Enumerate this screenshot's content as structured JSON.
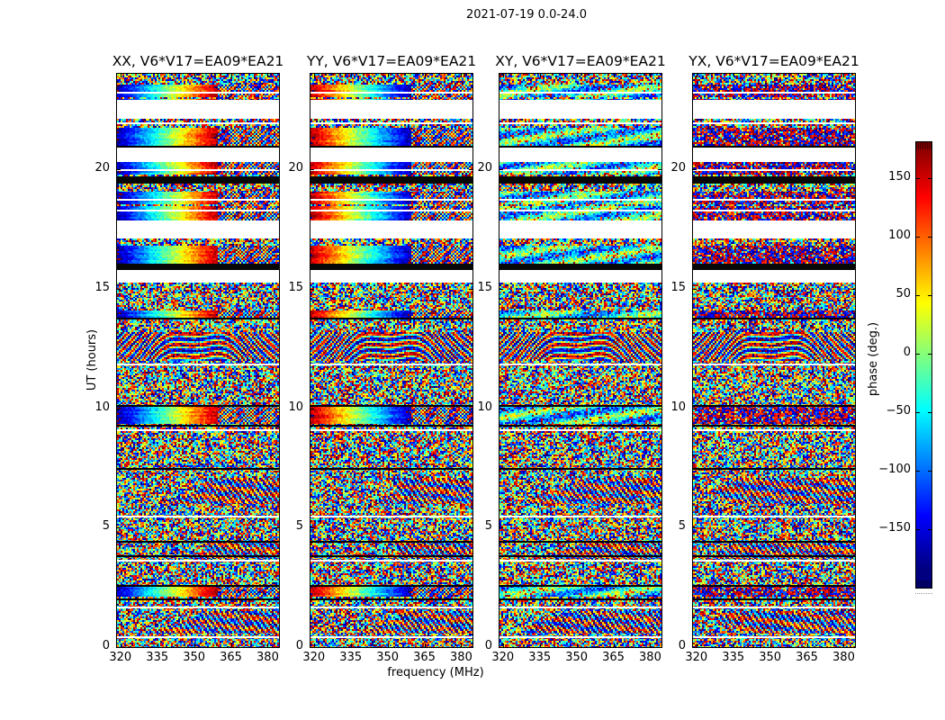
{
  "figure": {
    "title": "2021-07-19 0.0-24.0",
    "background": "#ffffff"
  },
  "axes": {
    "xlabel": "frequency (MHz)",
    "ylabel": "UT (hours)",
    "xticks": [
      320,
      335,
      350,
      365,
      380
    ],
    "yticks": [
      20,
      15,
      10,
      5,
      0
    ]
  },
  "panels": [
    {
      "id": "xx",
      "title": "XX, V6*V17=EA09*EA21",
      "ramp_style": "forward",
      "seed": 11
    },
    {
      "id": "yy",
      "title": "YY, V6*V17=EA09*EA21",
      "ramp_style": "reverse",
      "seed": 23
    },
    {
      "id": "xy",
      "title": "XY, V6*V17=EA09*EA21",
      "ramp_style": "teal",
      "seed": 37
    },
    {
      "id": "yx",
      "title": "YX, V6*V17=EA09*EA21",
      "ramp_style": "mixed",
      "seed": 51
    }
  ],
  "colorbar": {
    "label": "phase (deg.)",
    "ticks": [
      150,
      100,
      50,
      0,
      -50,
      -100,
      -150
    ],
    "vmin": -180,
    "vmax": 180,
    "colormap": "jet"
  },
  "chart_data": {
    "type": "heatmap",
    "title": "2021-07-19 0.0-24.0",
    "xlabel": "frequency (MHz)",
    "ylabel": "UT (hours)",
    "xlim": [
      318.6,
      384.6
    ],
    "ylim": [
      0,
      24
    ],
    "xticks": [
      320,
      335,
      350,
      365,
      380
    ],
    "yticks": [
      0,
      5,
      10,
      15,
      20
    ],
    "colorbar": {
      "label": "phase (deg.)",
      "range": [
        -180,
        180
      ],
      "ticks": [
        -150,
        -100,
        -50,
        0,
        50,
        100,
        150
      ],
      "colormap": "jet"
    },
    "panels": [
      "XX, V6*V17=EA09*EA21",
      "YY, V6*V17=EA09*EA21",
      "XY, V6*V17=EA09*EA21",
      "YX, V6*V17=EA09*EA21"
    ],
    "value_units": "degrees of interferometric visibility phase vs frequency (x) and UT time (y)",
    "panel_styles": {
      "xx": "forward",
      "yy": "reverse",
      "xy": "teal",
      "yx": "mixed"
    },
    "bands": [
      {
        "t0": 23.55,
        "t1": 24.0,
        "kind": "noise"
      },
      {
        "t0": 22.9,
        "t1": 23.55,
        "kind": "ramp_stripes"
      },
      {
        "t0": 22.1,
        "t1": 22.9,
        "kind": "white"
      },
      {
        "t0": 21.75,
        "t1": 22.1,
        "kind": "noise_stripe"
      },
      {
        "t0": 21.0,
        "t1": 21.75,
        "kind": "ramp"
      },
      {
        "t0": 20.3,
        "t1": 21.0,
        "kind": "white"
      },
      {
        "t0": 19.7,
        "t1": 20.3,
        "kind": "ramp_stripes"
      },
      {
        "t0": 19.4,
        "t1": 19.7,
        "kind": "black"
      },
      {
        "t0": 19.05,
        "t1": 19.4,
        "kind": "noise"
      },
      {
        "t0": 17.8,
        "t1": 19.05,
        "kind": "ramp_stripes"
      },
      {
        "t0": 17.1,
        "t1": 17.8,
        "kind": "white"
      },
      {
        "t0": 16.8,
        "t1": 17.1,
        "kind": "noise"
      },
      {
        "t0": 16.05,
        "t1": 16.8,
        "kind": "ramp"
      },
      {
        "t0": 15.8,
        "t1": 16.05,
        "kind": "black"
      },
      {
        "t0": 15.25,
        "t1": 15.8,
        "kind": "white"
      },
      {
        "t0": 14.6,
        "t1": 15.25,
        "kind": "noise"
      },
      {
        "t0": 14.1,
        "t1": 14.6,
        "kind": "noise"
      },
      {
        "t0": 13.8,
        "t1": 14.1,
        "kind": "ramp_thin"
      },
      {
        "t0": 13.2,
        "t1": 13.8,
        "kind": "noise"
      },
      {
        "t0": 12.0,
        "t1": 13.2,
        "kind": "fingerprint"
      },
      {
        "t0": 10.1,
        "t1": 12.0,
        "kind": "noise"
      },
      {
        "t0": 9.35,
        "t1": 10.1,
        "kind": "ramp"
      },
      {
        "t0": 7.1,
        "t1": 9.35,
        "kind": "noise"
      },
      {
        "t0": 6.0,
        "t1": 7.1,
        "kind": "noise_moire"
      },
      {
        "t0": 4.4,
        "t1": 6.0,
        "kind": "noise"
      },
      {
        "t0": 3.7,
        "t1": 4.4,
        "kind": "noise_moire"
      },
      {
        "t0": 2.55,
        "t1": 3.7,
        "kind": "noise"
      },
      {
        "t0": 2.1,
        "t1": 2.55,
        "kind": "ramp"
      },
      {
        "t0": 1.5,
        "t1": 2.1,
        "kind": "noise"
      },
      {
        "t0": 0.55,
        "t1": 1.5,
        "kind": "noise_moire"
      },
      {
        "t0": 0.0,
        "t1": 0.55,
        "kind": "noise"
      }
    ],
    "lines": [
      {
        "t": 21.0,
        "color": "#000000"
      },
      {
        "t": 13.8,
        "color": "#000000"
      },
      {
        "t": 11.85,
        "color": "#ffffff"
      },
      {
        "t": 10.12,
        "color": "#000000"
      },
      {
        "t": 9.3,
        "color": "#000000"
      },
      {
        "t": 9.1,
        "color": "#ffffff"
      },
      {
        "t": 7.5,
        "color": "#000000"
      },
      {
        "t": 5.5,
        "color": "#ffffff"
      },
      {
        "t": 4.45,
        "color": "#000000"
      },
      {
        "t": 3.85,
        "color": "#000000"
      },
      {
        "t": 3.65,
        "color": "#ffffff"
      },
      {
        "t": 2.6,
        "color": "#000000"
      },
      {
        "t": 2.05,
        "color": "#000000"
      },
      {
        "t": 1.7,
        "color": "#ffffff"
      },
      {
        "t": 0.45,
        "color": "#ffffff"
      }
    ]
  }
}
